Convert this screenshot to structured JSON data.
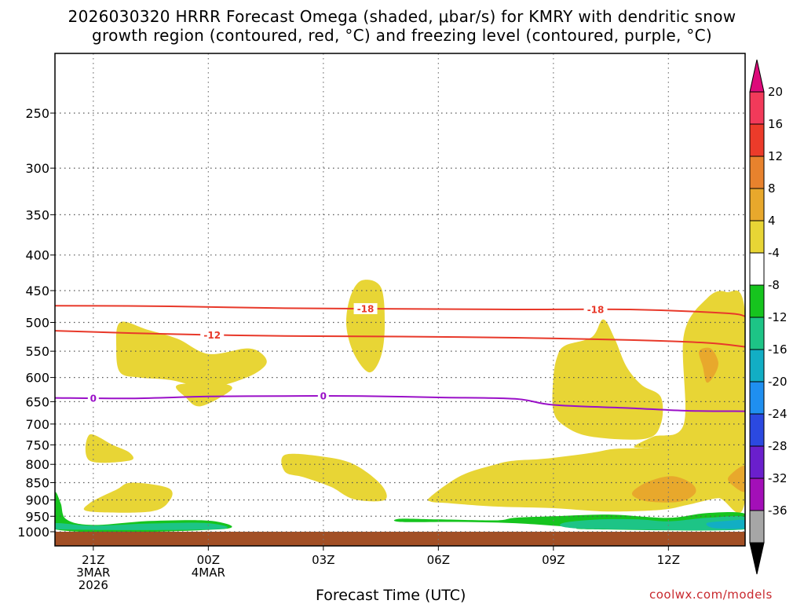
{
  "title": {
    "line1": "2026030320 HRRR Forecast Omega (shaded, μbar/s) for KMRY with dendritic snow",
    "line2": "growth region (contoured, red, °C) and freezing level (contoured, purple, °C)"
  },
  "xaxis_label": "Forecast Time (UTC)",
  "credit": "coolwx.com/models",
  "chart_data": {
    "type": "time-height cross section",
    "x_unit": "hours from 2026-03-03 20Z",
    "x_range": [
      0,
      18
    ],
    "y_unit": "hPa",
    "y_range": [
      1020,
      200
    ],
    "y_ticks": [
      250,
      300,
      350,
      400,
      450,
      500,
      550,
      600,
      650,
      700,
      750,
      800,
      850,
      900,
      950,
      1000
    ],
    "x_ticks": [
      {
        "x": 1,
        "lines": [
          "21Z",
          "3MAR",
          "2026"
        ]
      },
      {
        "x": 4,
        "lines": [
          "00Z",
          "4MAR"
        ]
      },
      {
        "x": 7,
        "lines": [
          "03Z"
        ]
      },
      {
        "x": 10,
        "lines": [
          "06Z"
        ]
      },
      {
        "x": 13,
        "lines": [
          "09Z"
        ]
      },
      {
        "x": 16,
        "lines": [
          "12Z"
        ]
      }
    ],
    "grid": true,
    "colorbar": {
      "labels": [
        "20",
        "16",
        "12",
        "8",
        "4",
        "-4",
        "-8",
        "-12",
        "-16",
        "-20",
        "-24",
        "-28",
        "-32",
        "-36"
      ],
      "colors": [
        "#f23a5a",
        "#ec3b2a",
        "#e8822d",
        "#e8a82c",
        "#e8d535",
        "#ffffff",
        "#16c41e",
        "#1dc486",
        "#12aec4",
        "#1f8ff0",
        "#2b49e0",
        "#6a1fcc",
        "#a30fb8",
        "#a6a6a6"
      ],
      "top_color": "#dd0a7a",
      "bottom_color": "#000000"
    },
    "omega_fields": [
      {
        "band": "4 to 8",
        "color": "#e8d535",
        "points": [
          [
            1.7,
            500
          ],
          [
            2.4,
            512
          ],
          [
            3.2,
            528
          ],
          [
            4.0,
            555
          ],
          [
            5.0,
            545
          ],
          [
            5.4,
            555
          ],
          [
            5.5,
            575
          ],
          [
            5.0,
            600
          ],
          [
            4.0,
            620
          ],
          [
            3.0,
            605
          ],
          [
            2.2,
            600
          ],
          [
            1.7,
            590
          ],
          [
            1.6,
            545
          ]
        ]
      },
      {
        "band": "4 to 8",
        "color": "#e8d535",
        "points": [
          [
            3.2,
            615
          ],
          [
            4.3,
            612
          ],
          [
            4.6,
            625
          ],
          [
            3.8,
            660
          ],
          [
            3.4,
            640
          ]
        ]
      },
      {
        "band": "4 to 8",
        "color": "#e8d535",
        "points": [
          [
            8.0,
            435
          ],
          [
            8.5,
            445
          ],
          [
            8.6,
            505
          ],
          [
            8.5,
            560
          ],
          [
            8.2,
            590
          ],
          [
            7.8,
            555
          ],
          [
            7.6,
            505
          ],
          [
            7.7,
            460
          ]
        ]
      },
      {
        "band": "4 to 8",
        "color": "#e8d535",
        "points": [
          [
            0.9,
            725
          ],
          [
            1.5,
            750
          ],
          [
            1.95,
            770
          ],
          [
            1.95,
            790
          ],
          [
            0.9,
            790
          ]
        ]
      },
      {
        "band": "4 to 8",
        "color": "#e8d535",
        "points": [
          [
            0.9,
            910
          ],
          [
            1.6,
            870
          ],
          [
            2.0,
            850
          ],
          [
            2.95,
            865
          ],
          [
            3.0,
            900
          ],
          [
            2.5,
            935
          ],
          [
            0.9,
            935
          ]
        ]
      },
      {
        "band": "4 to 8",
        "color": "#e8d535",
        "points": [
          [
            6.0,
            775
          ],
          [
            7.0,
            780
          ],
          [
            7.8,
            800
          ],
          [
            8.5,
            855
          ],
          [
            8.6,
            900
          ],
          [
            7.8,
            898
          ],
          [
            7.2,
            862
          ],
          [
            6.5,
            835
          ],
          [
            6.0,
            820
          ]
        ]
      },
      {
        "band": "4 to 8",
        "color": "#e8d535",
        "points": [
          [
            9.8,
            890
          ],
          [
            10.6,
            830
          ],
          [
            11.5,
            800
          ],
          [
            12.0,
            790
          ],
          [
            12.8,
            785
          ],
          [
            14.0,
            770
          ],
          [
            14.6,
            760
          ],
          [
            15.5,
            758
          ],
          [
            15.1,
            755
          ],
          [
            15.6,
            730
          ],
          [
            16.4,
            700
          ],
          [
            16.4,
            522
          ],
          [
            17.0,
            462
          ],
          [
            17.5,
            452
          ],
          [
            18,
            485
          ],
          [
            18,
            900
          ],
          [
            17.3,
            895
          ],
          [
            16.5,
            915
          ],
          [
            15.8,
            930
          ],
          [
            14.4,
            935
          ],
          [
            13.0,
            925
          ],
          [
            11.5,
            920
          ],
          [
            10.3,
            910
          ],
          [
            9.8,
            905
          ]
        ]
      },
      {
        "band": "4 to 8",
        "color": "#e8d535",
        "points": [
          [
            13.3,
            540
          ],
          [
            14.0,
            525
          ],
          [
            14.3,
            495
          ],
          [
            14.6,
            528
          ],
          [
            14.9,
            578
          ],
          [
            15.3,
            615
          ],
          [
            15.8,
            640
          ],
          [
            15.8,
            700
          ],
          [
            15.4,
            735
          ],
          [
            14.0,
            730
          ],
          [
            13.3,
            705
          ],
          [
            13.0,
            670
          ],
          [
            13.0,
            600
          ],
          [
            13.1,
            560
          ]
        ]
      },
      {
        "band": "8 to 12",
        "color": "#e8a82c",
        "points": [
          [
            16.8,
            550
          ],
          [
            17.1,
            545
          ],
          [
            17.3,
            570
          ],
          [
            17.2,
            595
          ],
          [
            17.0,
            610
          ],
          [
            16.9,
            580
          ]
        ]
      },
      {
        "band": "8 to 12",
        "color": "#e8a82c",
        "points": [
          [
            15.1,
            872
          ],
          [
            15.5,
            846
          ],
          [
            16.1,
            832
          ],
          [
            16.6,
            852
          ],
          [
            16.7,
            880
          ],
          [
            16.3,
            905
          ],
          [
            15.5,
            905
          ],
          [
            15.1,
            890
          ]
        ]
      },
      {
        "band": "8 to 12",
        "color": "#e8a82c",
        "points": [
          [
            17.6,
            830
          ],
          [
            18,
            805
          ],
          [
            18,
            875
          ],
          [
            17.6,
            850
          ]
        ]
      },
      {
        "band": "-8 to -4",
        "color": "#16c41e",
        "points": [
          [
            0,
            880
          ],
          [
            0.15,
            910
          ],
          [
            0.3,
            960
          ],
          [
            1.0,
            978
          ],
          [
            2.5,
            965
          ],
          [
            4.1,
            965
          ],
          [
            4.3,
            992
          ],
          [
            0,
            992
          ]
        ]
      },
      {
        "band": "-8 to -4",
        "color": "#16c41e",
        "points": [
          [
            9.0,
            958
          ],
          [
            10.0,
            960
          ],
          [
            11.5,
            963
          ],
          [
            12.0,
            955
          ],
          [
            13.0,
            950
          ],
          [
            14.5,
            945
          ],
          [
            16.0,
            955
          ],
          [
            17.0,
            940
          ],
          [
            18,
            942
          ],
          [
            18,
            992
          ],
          [
            14.0,
            992
          ],
          [
            13.5,
            985
          ],
          [
            12.0,
            972
          ],
          [
            10.5,
            968
          ],
          [
            9.0,
            968
          ]
        ]
      },
      {
        "band": "-12 to -8",
        "color": "#1dc486",
        "points": [
          [
            0,
            972
          ],
          [
            1,
            980
          ],
          [
            2.5,
            973
          ],
          [
            4.0,
            972
          ],
          [
            4.2,
            992
          ],
          [
            0,
            992
          ]
        ]
      },
      {
        "band": "-12 to -8",
        "color": "#1dc486",
        "points": [
          [
            13.3,
            970
          ],
          [
            14.2,
            960
          ],
          [
            15.2,
            960
          ],
          [
            16.0,
            966
          ],
          [
            17.0,
            955
          ],
          [
            18,
            952
          ],
          [
            18,
            992
          ],
          [
            14.5,
            992
          ],
          [
            13.3,
            985
          ]
        ]
      },
      {
        "band": "-16 to -12",
        "color": "#12aec4",
        "points": [
          [
            17.0,
            972
          ],
          [
            17.5,
            965
          ],
          [
            18,
            963
          ],
          [
            18,
            988
          ],
          [
            17.2,
            988
          ]
        ]
      }
    ],
    "temperature_contours": [
      {
        "value": -18,
        "color": "#e8392a",
        "label": "-18",
        "label_x": [
          8.1,
          14.1
        ],
        "points": [
          [
            0,
            473
          ],
          [
            3,
            474
          ],
          [
            6,
            477
          ],
          [
            9,
            478
          ],
          [
            12,
            479
          ],
          [
            15,
            479
          ],
          [
            17.5,
            485
          ],
          [
            18,
            490
          ]
        ]
      },
      {
        "value": -12,
        "color": "#e8392a",
        "label": "-12",
        "label_x": [
          4.1
        ],
        "points": [
          [
            0,
            514
          ],
          [
            2,
            518
          ],
          [
            4,
            521
          ],
          [
            6,
            523
          ],
          [
            9,
            524
          ],
          [
            12,
            526
          ],
          [
            15,
            530
          ],
          [
            17,
            535
          ],
          [
            18,
            542
          ]
        ]
      }
    ],
    "freezing_level": {
      "value": 0,
      "color": "#9a10c8",
      "label": "0",
      "label_x": [
        1.0,
        7.0
      ],
      "points": [
        [
          0,
          642
        ],
        [
          2,
          643
        ],
        [
          4,
          639
        ],
        [
          6,
          638
        ],
        [
          8,
          638
        ],
        [
          10,
          641
        ],
        [
          12,
          644
        ],
        [
          13,
          657
        ],
        [
          15,
          664
        ],
        [
          16.5,
          670
        ],
        [
          18,
          671
        ]
      ]
    },
    "ground": {
      "top": 1000,
      "color": "#a24f25"
    }
  }
}
